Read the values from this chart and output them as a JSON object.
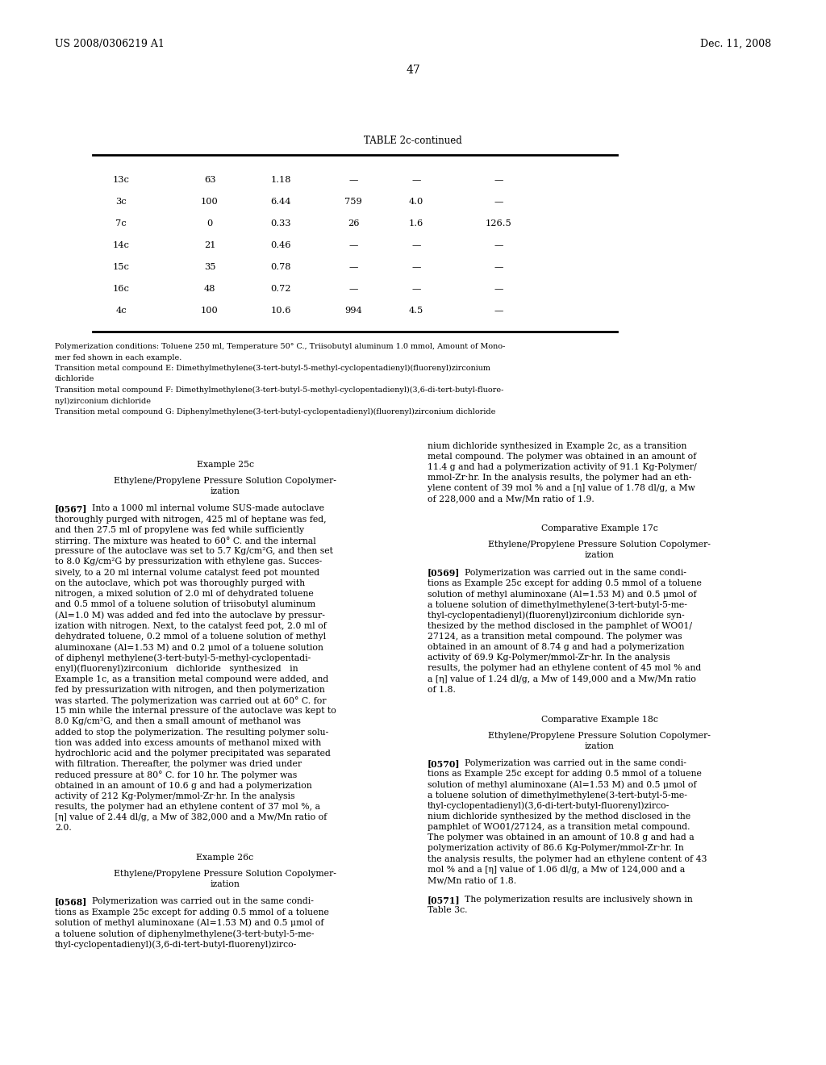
{
  "page_number": "47",
  "header_left": "US 2008/0306219 A1",
  "header_right": "Dec. 11, 2008",
  "background_color": "#ffffff",
  "table_title": "TABLE 2c-continued",
  "table_rows": [
    [
      "13c",
      "63",
      "1.18",
      "—",
      "—",
      "—"
    ],
    [
      "3c",
      "100",
      "6.44",
      "759",
      "4.0",
      "—"
    ],
    [
      "7c",
      "0",
      "0.33",
      "26",
      "1.6",
      "126.5"
    ],
    [
      "14c",
      "21",
      "0.46",
      "—",
      "—",
      "—"
    ],
    [
      "15c",
      "35",
      "0.78",
      "—",
      "—",
      "—"
    ],
    [
      "16c",
      "48",
      "0.72",
      "—",
      "—",
      "—"
    ],
    [
      "4c",
      "100",
      "10.6",
      "994",
      "4.5",
      "—"
    ]
  ],
  "footnotes": [
    "Polymerization conditions: Toluene 250 ml, Temperature 50° C., Triisobutyl aluminum 1.0 mmol, Amount of Mono-",
    "mer fed shown in each example.",
    "Transition metal compound E: Dimethylmethylene(3-tert-butyl-5-methyl-cyclopentadienyl)(fluorenyl)zirconium",
    "dichloride",
    "Transition metal compound F: Dimethylmethylene(3-tert-butyl-5-methyl-cyclopentadienyl)(3,6-di-tert-butyl-fluore-",
    "nyl)zirconium dichloride",
    "Transition metal compound G: Diphenylmethylene(3-tert-butyl-cyclopentadienyl)(fluorenyl)zirconium dichloride"
  ],
  "left_col_lines": [
    {
      "t": "center",
      "text": "Example 25c",
      "extra_before": 0.018
    },
    {
      "t": "center",
      "text": "Ethylene/Propylene Pressure Solution Copolymer-",
      "extra_before": 0.005
    },
    {
      "t": "center",
      "text": "ization",
      "extra_before": 0.0
    },
    {
      "t": "para_start",
      "tag": "[0567]",
      "text": "Into a 1000 ml internal volume SUS-made autoclave",
      "extra_before": 0.006
    },
    {
      "t": "para",
      "text": "thoroughly purged with nitrogen, 425 ml of heptane was fed,"
    },
    {
      "t": "para",
      "text": "and then 27.5 ml of propylene was fed while sufficiently"
    },
    {
      "t": "para",
      "text": "stirring. The mixture was heated to 60° C. and the internal"
    },
    {
      "t": "para",
      "text": "pressure of the autoclave was set to 5.7 Kg/cm²G, and then set"
    },
    {
      "t": "para",
      "text": "to 8.0 Kg/cm²G by pressurization with ethylene gas. Succes-"
    },
    {
      "t": "para",
      "text": "sively, to a 20 ml internal volume catalyst feed pot mounted"
    },
    {
      "t": "para",
      "text": "on the autoclave, which pot was thoroughly purged with"
    },
    {
      "t": "para",
      "text": "nitrogen, a mixed solution of 2.0 ml of dehydrated toluene"
    },
    {
      "t": "para",
      "text": "and 0.5 mmol of a toluene solution of triisobutyl aluminum"
    },
    {
      "t": "para",
      "text": "(Al=1.0 M) was added and fed into the autoclave by pressur-"
    },
    {
      "t": "para",
      "text": "ization with nitrogen. Next, to the catalyst feed pot, 2.0 ml of"
    },
    {
      "t": "para",
      "text": "dehydrated toluene, 0.2 mmol of a toluene solution of methyl"
    },
    {
      "t": "para",
      "text": "aluminoxane (Al=1.53 M) and 0.2 μmol of a toluene solution"
    },
    {
      "t": "para",
      "text": "of diphenyl methylene(3-tert-butyl-5-methyl-cyclopentadi-"
    },
    {
      "t": "para",
      "text": "enyl)(fluorenyl)zirconium   dichloride   synthesized   in"
    },
    {
      "t": "para",
      "text": "Example 1c, as a transition metal compound were added, and"
    },
    {
      "t": "para",
      "text": "fed by pressurization with nitrogen, and then polymerization"
    },
    {
      "t": "para",
      "text": "was started. The polymerization was carried out at 60° C. for"
    },
    {
      "t": "para",
      "text": "15 min while the internal pressure of the autoclave was kept to"
    },
    {
      "t": "para",
      "text": "8.0 Kg/cm²G, and then a small amount of methanol was"
    },
    {
      "t": "para",
      "text": "added to stop the polymerization. The resulting polymer solu-"
    },
    {
      "t": "para",
      "text": "tion was added into excess amounts of methanol mixed with"
    },
    {
      "t": "para",
      "text": "hydrochloric acid and the polymer precipitated was separated"
    },
    {
      "t": "para",
      "text": "with filtration. Thereafter, the polymer was dried under"
    },
    {
      "t": "para",
      "text": "reduced pressure at 80° C. for 10 hr. The polymer was"
    },
    {
      "t": "para",
      "text": "obtained in an amount of 10.6 g and had a polymerization"
    },
    {
      "t": "para",
      "text": "activity of 212 Kg-Polymer/mmol-Zr·hr. In the analysis"
    },
    {
      "t": "para",
      "text": "results, the polymer had an ethylene content of 37 mol %, a"
    },
    {
      "t": "para",
      "text": "[η] value of 2.44 dl/g, a Mw of 382,000 and a Mw/Mn ratio of"
    },
    {
      "t": "para",
      "text": "2.0.",
      "extra_after": 0.012
    },
    {
      "t": "center",
      "text": "Example 26c",
      "extra_before": 0.006
    },
    {
      "t": "center",
      "text": "Ethylene/Propylene Pressure Solution Copolymer-",
      "extra_before": 0.005
    },
    {
      "t": "center",
      "text": "ization",
      "extra_before": 0.0
    },
    {
      "t": "para_start",
      "tag": "[0568]",
      "text": "Polymerization was carried out in the same condi-",
      "extra_before": 0.006
    },
    {
      "t": "para",
      "text": "tions as Example 25c except for adding 0.5 mmol of a toluene"
    },
    {
      "t": "para",
      "text": "solution of methyl aluminoxane (Al=1.53 M) and 0.5 μmol of"
    },
    {
      "t": "para",
      "text": "a toluene solution of diphenylmethylene(3-tert-butyl-5-me-"
    },
    {
      "t": "para",
      "text": "thyl-cyclopentadienyl)(3,6-di-tert-butyl-fluorenyl)zirco-"
    }
  ],
  "right_col_lines": [
    {
      "t": "para",
      "text": "nium dichloride synthesized in Example 2c, as a transition",
      "extra_before": 0.0
    },
    {
      "t": "para",
      "text": "metal compound. The polymer was obtained in an amount of"
    },
    {
      "t": "para",
      "text": "11.4 g and had a polymerization activity of 91.1 Kg-Polymer/"
    },
    {
      "t": "para",
      "text": "mmol-Zr·hr. In the analysis results, the polymer had an eth-"
    },
    {
      "t": "para",
      "text": "ylene content of 39 mol % and a [η] value of 1.78 dl/g, a Mw"
    },
    {
      "t": "para",
      "text": "of 228,000 and a Mw/Mn ratio of 1.9.",
      "extra_after": 0.012
    },
    {
      "t": "center",
      "text": "Comparative Example 17c",
      "extra_before": 0.006
    },
    {
      "t": "center",
      "text": "Ethylene/Propylene Pressure Solution Copolymer-",
      "extra_before": 0.005
    },
    {
      "t": "center",
      "text": "ization",
      "extra_before": 0.0
    },
    {
      "t": "para_start",
      "tag": "[0569]",
      "text": "Polymerization was carried out in the same condi-",
      "extra_before": 0.006
    },
    {
      "t": "para",
      "text": "tions as Example 25c except for adding 0.5 mmol of a toluene"
    },
    {
      "t": "para",
      "text": "solution of methyl aluminoxane (Al=1.53 M) and 0.5 μmol of"
    },
    {
      "t": "para",
      "text": "a toluene solution of dimethylmethylene(3-tert-butyl-5-me-"
    },
    {
      "t": "para",
      "text": "thyl-cyclopentadienyl)(fluorenyl)zirconium dichloride syn-"
    },
    {
      "t": "para",
      "text": "thesized by the method disclosed in the pamphlet of WO01/"
    },
    {
      "t": "para",
      "text": "27124, as a transition metal compound. The polymer was"
    },
    {
      "t": "para",
      "text": "obtained in an amount of 8.74 g and had a polymerization"
    },
    {
      "t": "para",
      "text": "activity of 69.9 Kg-Polymer/mmol-Zr·hr. In the analysis"
    },
    {
      "t": "para",
      "text": "results, the polymer had an ethylene content of 45 mol % and"
    },
    {
      "t": "para",
      "text": "a [η] value of 1.24 dl/g, a Mw of 149,000 and a Mw/Mn ratio"
    },
    {
      "t": "para",
      "text": "of 1.8.",
      "extra_after": 0.012
    },
    {
      "t": "center",
      "text": "Comparative Example 18c",
      "extra_before": 0.006
    },
    {
      "t": "center",
      "text": "Ethylene/Propylene Pressure Solution Copolymer-",
      "extra_before": 0.005
    },
    {
      "t": "center",
      "text": "ization",
      "extra_before": 0.0
    },
    {
      "t": "para_start",
      "tag": "[0570]",
      "text": "Polymerization was carried out in the same condi-",
      "extra_before": 0.006
    },
    {
      "t": "para",
      "text": "tions as Example 25c except for adding 0.5 mmol of a toluene"
    },
    {
      "t": "para",
      "text": "solution of methyl aluminoxane (Al=1.53 M) and 0.5 μmol of"
    },
    {
      "t": "para",
      "text": "a toluene solution of dimethylmethylene(3-tert-butyl-5-me-"
    },
    {
      "t": "para",
      "text": "thyl-cyclopentadienyl)(3,6-di-tert-butyl-fluorenyl)zirco-"
    },
    {
      "t": "para",
      "text": "nium dichloride synthesized by the method disclosed in the"
    },
    {
      "t": "para",
      "text": "pamphlet of WO01/27124, as a transition metal compound."
    },
    {
      "t": "para",
      "text": "The polymer was obtained in an amount of 10.8 g and had a"
    },
    {
      "t": "para",
      "text": "polymerization activity of 86.6 Kg-Polymer/mmol-Zr·hr. In"
    },
    {
      "t": "para",
      "text": "the analysis results, the polymer had an ethylene content of 43"
    },
    {
      "t": "para",
      "text": "mol % and a [η] value of 1.06 dl/g, a Mw of 124,000 and a"
    },
    {
      "t": "para",
      "text": "Mw/Mn ratio of 1.8.",
      "extra_after": 0.008
    },
    {
      "t": "para_start",
      "tag": "[0571]",
      "text": "The polymerization results are inclusively shown in",
      "extra_before": 0.0
    },
    {
      "t": "para",
      "text": "Table 3c."
    }
  ]
}
